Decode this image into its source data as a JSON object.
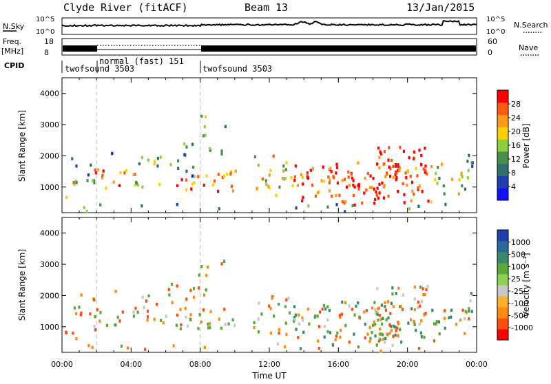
{
  "header": {
    "station": "Clyde River (fitACF)",
    "beam": "Beam 13",
    "date": "13/Jan/2015"
  },
  "strip": {
    "nsky_label": "N.Sky",
    "nsky_ticks": [
      "10^5",
      "10^0"
    ],
    "nsearch_label": "N.Search",
    "nsearch_ticks": [
      "10^5",
      "10^0"
    ],
    "freq_label": "Freq.",
    "freq_unit": "[MHz]",
    "freq_ticks": [
      "18",
      "8"
    ],
    "nave_label": "Nave",
    "nave_ticks": [
      "60",
      "0"
    ],
    "cpid_label": "CPID",
    "cpid_segments": [
      {
        "label": "twofsound 3503",
        "start_h": 0,
        "end_h": 2
      },
      {
        "label": "normal (fast) 151",
        "start_h": 2,
        "end_h": 8
      },
      {
        "label": "twofsound 3503",
        "start_h": 8,
        "end_h": 24
      }
    ]
  },
  "chart_data": [
    {
      "type": "heatmap",
      "name": "power-panel",
      "ylabel": "Slant Range [km]",
      "xlim_h": [
        0,
        24
      ],
      "ylim": [
        180,
        4500
      ],
      "yticks": [
        "1000",
        "2000",
        "3000",
        "4000"
      ],
      "colorbar": {
        "label": "Power [dB]",
        "ticks": [
          "4",
          "8",
          "12",
          "16",
          "20",
          "24",
          "28"
        ],
        "colors": [
          "#1010ff",
          "#1f3fb0",
          "#2f6f6f",
          "#4c8f4c",
          "#8fcf3f",
          "#ffd000",
          "#ff9a1a",
          "#ff5a10",
          "#ff0000"
        ]
      }
    },
    {
      "type": "heatmap",
      "name": "velocity-panel",
      "ylabel": "Slant Range [km]",
      "xlabel": "Time UT",
      "xlim_h": [
        0,
        24
      ],
      "ylim": [
        180,
        4500
      ],
      "xticks": [
        "00:00",
        "04:00",
        "08:00",
        "12:00",
        "16:00",
        "20:00",
        "00:00"
      ],
      "yticks": [
        "1000",
        "2000",
        "3000",
        "4000"
      ],
      "colorbar": {
        "label": "Velocity [m s⁻¹]",
        "ticks": [
          "1000",
          "500",
          "100",
          "25",
          "-25",
          "-100",
          "-500",
          "-1000"
        ],
        "colors": [
          "#2040b0",
          "#2a6a9a",
          "#3a8a6a",
          "#5aaa3a",
          "#8fd050",
          "#c8c8c8",
          "#ffb030",
          "#ff8a10",
          "#ff5010",
          "#ff0000"
        ]
      }
    }
  ]
}
